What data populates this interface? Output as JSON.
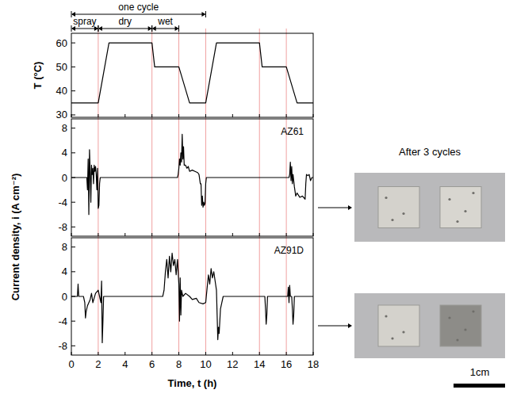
{
  "chart_data": [
    {
      "type": "line",
      "ylabel": "T (°C)",
      "color": "#000000",
      "grid": false,
      "tick_labels": "y",
      "x": [
        0,
        2,
        2.8,
        6,
        6.2,
        8,
        8.8,
        10,
        10.8,
        14,
        14.2,
        16,
        16.8,
        18
      ],
      "values": [
        35,
        35,
        60,
        60,
        50,
        50,
        35,
        35,
        60,
        60,
        50,
        50,
        35,
        35
      ],
      "xlim": [
        0,
        18
      ],
      "xticks": [
        0,
        2,
        4,
        6,
        8,
        10,
        12,
        14,
        16,
        18
      ],
      "ylim": [
        29,
        64
      ],
      "yticks": [
        30,
        40,
        50,
        60
      ],
      "annotations": [
        {
          "text": "one cycle",
          "x": [
            0,
            10
          ]
        }
      ],
      "phases": [
        {
          "text": "spray",
          "x": [
            0,
            2
          ]
        },
        {
          "text": "dry",
          "x": [
            2,
            6
          ]
        },
        {
          "text": "wet",
          "x": [
            6,
            8
          ]
        }
      ],
      "phase_lines": [
        2,
        6,
        8,
        10,
        14,
        16
      ]
    },
    {
      "type": "line",
      "title": "AZ61",
      "ylabel": "Current density, i (A cm⁻²)",
      "color": "#000000",
      "grid": false,
      "tick_labels": "y",
      "x": [
        0,
        1.15,
        1.2,
        1.25,
        1.3,
        1.35,
        1.4,
        1.45,
        1.5,
        1.55,
        1.6,
        1.65,
        1.7,
        1.75,
        1.8,
        1.85,
        1.9,
        1.95,
        2.0,
        2.05,
        2.1,
        2.15,
        2.2,
        7.9,
        7.95,
        8.0,
        8.05,
        8.1,
        8.15,
        8.2,
        8.25,
        8.3,
        8.35,
        8.4,
        8.5,
        8.6,
        8.7,
        8.8,
        9.0,
        9.2,
        9.4,
        9.5,
        9.6,
        9.65,
        9.7,
        9.75,
        9.8,
        9.85,
        9.9,
        9.95,
        10.0,
        10.05,
        10.1,
        16.2,
        16.25,
        16.3,
        16.35,
        16.4,
        16.45,
        16.5,
        16.6,
        16.7,
        16.8,
        17.0,
        17.2,
        17.4,
        17.45,
        17.5,
        17.6,
        17.7,
        17.8,
        17.9,
        18
      ],
      "values": [
        0,
        0,
        -2,
        3,
        -6,
        4.5,
        1,
        -4,
        2,
        0.5,
        1.5,
        -1,
        2,
        1,
        1.8,
        0.5,
        -2,
        1.5,
        -5,
        -4.5,
        -1,
        0,
        0,
        0,
        0.5,
        1.5,
        3,
        2,
        4,
        2.5,
        7,
        3,
        5,
        2,
        2,
        1.5,
        1.8,
        1,
        1.2,
        1,
        0.8,
        0.5,
        -1,
        -1,
        -4.5,
        -3,
        -4.8,
        -4,
        -4.5,
        -4.2,
        -1,
        0,
        0,
        0,
        0.5,
        2.5,
        -0.5,
        1.8,
        -1,
        0.5,
        -1.5,
        -3,
        -2.5,
        -3.2,
        -3,
        -3.5,
        -1,
        0.5,
        0.3,
        0.5,
        -0.5,
        0,
        0
      ],
      "xlim": [
        0,
        18
      ],
      "xticks": [
        0,
        2,
        4,
        6,
        8,
        10,
        12,
        14,
        16,
        18
      ],
      "ylim": [
        -9.5,
        9.5
      ],
      "yticks": [
        -8,
        -4,
        0,
        4,
        8
      ]
    },
    {
      "type": "line",
      "title": "AZ91D",
      "xlabel": "Time, t (h)",
      "color": "#000000",
      "grid": false,
      "tick_labels": true,
      "x": [
        0,
        0.45,
        0.5,
        0.55,
        0.9,
        1.0,
        1.05,
        1.1,
        1.2,
        1.4,
        1.5,
        1.6,
        1.8,
        2.0,
        2.1,
        2.2,
        2.25,
        2.3,
        2.35,
        2.4,
        2.5,
        6.8,
        6.9,
        7.0,
        7.1,
        7.2,
        7.3,
        7.4,
        7.5,
        7.6,
        7.7,
        7.8,
        7.9,
        8.0,
        8.05,
        8.1,
        8.15,
        8.2,
        8.3,
        8.5,
        8.8,
        9.0,
        9.3,
        9.5,
        9.8,
        10.0,
        10.2,
        10.3,
        10.4,
        10.5,
        10.6,
        10.7,
        10.8,
        10.85,
        10.9,
        10.95,
        11.0,
        11.1,
        11.2,
        11.3,
        14.4,
        14.45,
        14.5,
        14.55,
        14.6,
        16.1,
        16.15,
        16.2,
        16.25,
        16.3,
        16.4,
        16.45,
        16.5,
        16.55,
        16.6,
        18
      ],
      "values": [
        0,
        0,
        2,
        0,
        0,
        -1,
        -3.5,
        -2.5,
        -1.5,
        -0.5,
        0.5,
        -1,
        0.5,
        1,
        0,
        -1,
        2.5,
        -7.5,
        -4,
        0,
        0,
        0,
        1,
        4,
        6,
        3,
        6.5,
        4,
        7,
        5,
        6,
        3.5,
        6,
        2,
        -4,
        3,
        -3,
        1,
        0,
        0.5,
        0,
        -0.5,
        -0.3,
        -1,
        -1.2,
        -1,
        3.5,
        2,
        4.5,
        3,
        4,
        2.5,
        1,
        -3,
        -7,
        -5,
        -6,
        -2,
        -1,
        0,
        0,
        -2,
        -4.5,
        -3,
        0,
        0,
        1.5,
        -1,
        1.8,
        0,
        0,
        -2,
        -4.5,
        -3,
        0,
        0
      ],
      "xlim": [
        0,
        18
      ],
      "xticks": [
        0,
        2,
        4,
        6,
        8,
        10,
        12,
        14,
        16,
        18
      ],
      "ylim": [
        -9.5,
        9.5
      ],
      "yticks": [
        -8,
        -4,
        0,
        4,
        8
      ]
    }
  ],
  "photos": {
    "title": "After 3 cycles",
    "scale_label": "1cm"
  }
}
